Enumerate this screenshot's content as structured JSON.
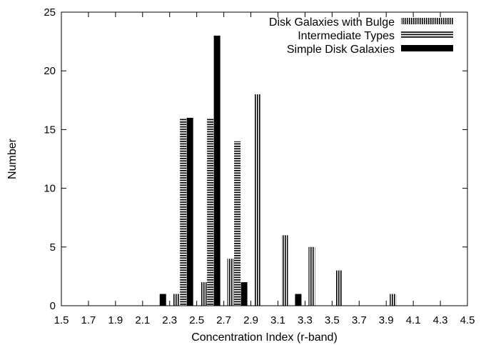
{
  "chart_data": {
    "type": "bar",
    "xlabel": "Concentration Index (r-band)",
    "ylabel": "Number",
    "xlim": [
      1.5,
      4.5
    ],
    "ylim": [
      0,
      25
    ],
    "xticks": [
      "1.5",
      "1.7",
      "1.9",
      "2.1",
      "2.3",
      "2.5",
      "2.7",
      "2.9",
      "3.1",
      "3.3",
      "3.5",
      "3.7",
      "3.9",
      "4.1",
      "4.3",
      "4.5"
    ],
    "yticks": [
      "0",
      "5",
      "10",
      "15",
      "20",
      "25"
    ],
    "grid": false,
    "legend_position": "top-right",
    "series": [
      {
        "name": "Disk Galaxies with Bulge",
        "pattern": "vertical-hatch",
        "x": [
          2.35,
          2.55,
          2.75,
          2.95,
          3.15,
          3.35,
          3.55,
          3.95
        ],
        "values": [
          1,
          2,
          4,
          18,
          6,
          5,
          3,
          1
        ]
      },
      {
        "name": "Intermediate Types",
        "pattern": "horizontal-hatch",
        "x": [
          2.4,
          2.6,
          2.8
        ],
        "values": [
          16,
          16,
          14
        ]
      },
      {
        "name": "Simple Disk Galaxies",
        "pattern": "solid",
        "x": [
          2.25,
          2.45,
          2.65,
          2.85,
          3.25
        ],
        "values": [
          1,
          16,
          23,
          2,
          1
        ]
      }
    ],
    "bar_color": "#000000"
  }
}
